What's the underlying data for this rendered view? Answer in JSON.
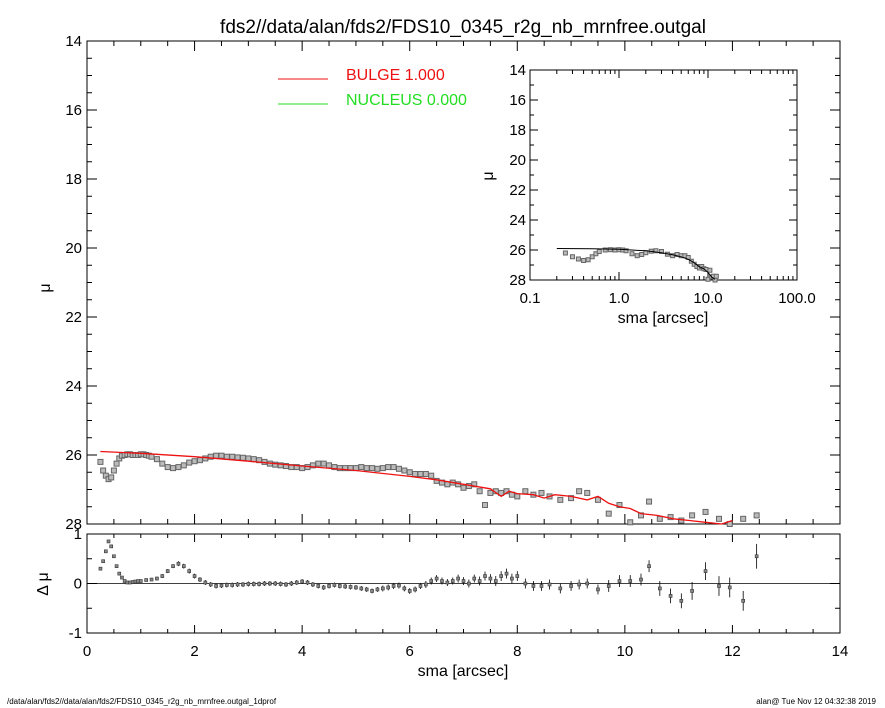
{
  "title": "fds2//data/alan/fds2/FDS10_0345_r2g_nb_mrnfree.outgal",
  "footer": {
    "left": "/data/alan/fds2//data/alan/fds2/FDS10_0345_r2g_nb_mrnfree.outgal_1dprof",
    "right": "alan@  Tue Nov 12 04:32:38 2019"
  },
  "colors": {
    "bulge": "#ee1111",
    "nucleus": "#22dd22",
    "data": "#666666",
    "axes": "#000000"
  },
  "chart_data": [
    {
      "id": "main",
      "type": "scatter",
      "title": "fds2//data/alan/fds2/FDS10_0345_r2g_nb_mrnfree.outgal",
      "xlabel": "",
      "ylabel": "μ",
      "xlim": [
        0,
        14
      ],
      "ylim": [
        14,
        28
      ],
      "y_inverted": true,
      "xticks": [
        0,
        2,
        4,
        6,
        8,
        10,
        12,
        14
      ],
      "yticks": [
        14,
        16,
        18,
        20,
        22,
        24,
        26,
        28
      ],
      "ytick_labels": [
        "14",
        "16",
        "18",
        "20",
        "22",
        "24",
        "26",
        "28"
      ],
      "legend": {
        "placement": "top-center",
        "entries": [
          {
            "label": "BULGE  1.000",
            "color": "#ee1111"
          },
          {
            "label": "NUCLEUS  0.000",
            "color": "#22dd22"
          }
        ]
      },
      "series": [
        {
          "name": "BULGE",
          "kind": "line",
          "color": "#ee1111",
          "x": [
            0.25,
            1.0,
            2.0,
            3.0,
            4.0,
            5.0,
            6.0,
            6.5,
            7.0,
            7.5,
            7.7,
            7.85,
            8.0,
            8.3,
            8.5,
            8.7,
            9.0,
            9.3,
            9.5,
            9.7,
            9.9,
            10.1,
            10.3,
            10.6,
            10.9,
            11.2,
            11.5,
            11.8,
            12.0
          ],
          "y": [
            25.9,
            25.95,
            26.05,
            26.18,
            26.32,
            26.45,
            26.62,
            26.72,
            26.85,
            26.98,
            27.2,
            27.05,
            27.12,
            27.15,
            27.25,
            27.15,
            27.2,
            27.3,
            27.2,
            27.4,
            27.5,
            27.55,
            27.7,
            27.75,
            27.85,
            27.9,
            27.95,
            28.0,
            27.9
          ]
        },
        {
          "name": "data",
          "kind": "markers",
          "color": "#666666",
          "x": [
            0.25,
            0.3,
            0.35,
            0.4,
            0.45,
            0.5,
            0.55,
            0.6,
            0.65,
            0.7,
            0.75,
            0.8,
            0.85,
            0.9,
            0.95,
            1.0,
            1.05,
            1.1,
            1.15,
            1.2,
            1.3,
            1.4,
            1.5,
            1.6,
            1.7,
            1.8,
            1.9,
            2.0,
            2.1,
            2.2,
            2.3,
            2.4,
            2.5,
            2.6,
            2.7,
            2.8,
            2.9,
            3.0,
            3.1,
            3.2,
            3.3,
            3.4,
            3.5,
            3.6,
            3.7,
            3.8,
            3.9,
            4.0,
            4.1,
            4.2,
            4.3,
            4.4,
            4.5,
            4.6,
            4.7,
            4.8,
            4.9,
            5.0,
            5.1,
            5.2,
            5.3,
            5.4,
            5.5,
            5.6,
            5.7,
            5.8,
            5.9,
            6.0,
            6.1,
            6.2,
            6.3,
            6.4,
            6.5,
            6.6,
            6.7,
            6.8,
            6.9,
            7.0,
            7.1,
            7.2,
            7.3,
            7.4,
            7.5,
            7.6,
            7.7,
            7.8,
            7.9,
            8.0,
            8.15,
            8.3,
            8.45,
            8.6,
            8.8,
            9.0,
            9.15,
            9.3,
            9.5,
            9.7,
            9.9,
            10.1,
            10.3,
            10.45,
            10.65,
            10.85,
            11.05,
            11.25,
            11.5,
            11.75,
            11.95,
            12.2,
            12.45
          ],
          "y": [
            26.2,
            26.45,
            26.6,
            26.7,
            26.65,
            26.45,
            26.25,
            26.1,
            26.02,
            26.0,
            25.98,
            25.98,
            26.0,
            26.0,
            26.0,
            25.98,
            25.98,
            26.0,
            26.02,
            26.05,
            26.12,
            26.25,
            26.35,
            26.38,
            26.35,
            26.3,
            26.22,
            26.18,
            26.15,
            26.1,
            26.05,
            26.02,
            26.02,
            26.05,
            26.05,
            26.07,
            26.08,
            26.1,
            26.12,
            26.15,
            26.2,
            26.25,
            26.28,
            26.3,
            26.32,
            26.35,
            26.35,
            26.38,
            26.35,
            26.3,
            26.25,
            26.25,
            26.3,
            26.35,
            26.38,
            26.38,
            26.38,
            26.38,
            26.35,
            26.38,
            26.38,
            26.4,
            26.38,
            26.35,
            26.35,
            26.4,
            26.45,
            26.5,
            26.55,
            26.55,
            26.55,
            26.6,
            26.75,
            26.8,
            26.85,
            26.8,
            26.85,
            26.95,
            26.9,
            26.85,
            27.05,
            27.45,
            27.1,
            27.05,
            27.1,
            27.05,
            27.15,
            27.2,
            27.05,
            27.15,
            27.1,
            27.2,
            27.3,
            27.25,
            27.05,
            27.1,
            27.3,
            27.7,
            27.45,
            27.95,
            27.75,
            27.35,
            27.85,
            27.8,
            27.9,
            27.75,
            27.65,
            27.85,
            28.0,
            27.85,
            27.75
          ]
        }
      ]
    },
    {
      "id": "residual",
      "type": "scatter",
      "xlabel": "sma [arcsec]",
      "ylabel": "Δ μ",
      "xlim": [
        0,
        14
      ],
      "ylim": [
        -1,
        1
      ],
      "xticks": [
        0,
        2,
        4,
        6,
        8,
        10,
        12,
        14
      ],
      "yticks": [
        -1,
        0,
        1
      ],
      "zero_line": true,
      "series": [
        {
          "name": "residuals",
          "kind": "markers-errorbars",
          "color": "#000000",
          "x": [
            0.25,
            0.3,
            0.35,
            0.4,
            0.45,
            0.5,
            0.55,
            0.6,
            0.65,
            0.7,
            0.75,
            0.8,
            0.85,
            0.9,
            0.95,
            1.0,
            1.1,
            1.2,
            1.3,
            1.4,
            1.5,
            1.6,
            1.7,
            1.8,
            1.9,
            2.0,
            2.1,
            2.2,
            2.3,
            2.4,
            2.5,
            2.6,
            2.7,
            2.8,
            2.9,
            3.0,
            3.1,
            3.2,
            3.3,
            3.4,
            3.5,
            3.6,
            3.7,
            3.8,
            3.9,
            4.0,
            4.1,
            4.2,
            4.3,
            4.4,
            4.5,
            4.6,
            4.7,
            4.8,
            4.9,
            5.0,
            5.1,
            5.2,
            5.3,
            5.4,
            5.5,
            5.6,
            5.7,
            5.8,
            5.9,
            6.0,
            6.1,
            6.2,
            6.3,
            6.4,
            6.5,
            6.6,
            6.7,
            6.8,
            6.9,
            7.0,
            7.1,
            7.2,
            7.3,
            7.4,
            7.5,
            7.6,
            7.7,
            7.8,
            7.9,
            8.0,
            8.15,
            8.3,
            8.45,
            8.6,
            8.8,
            9.0,
            9.15,
            9.3,
            9.5,
            9.7,
            9.9,
            10.1,
            10.3,
            10.45,
            10.65,
            10.85,
            11.05,
            11.25,
            11.5,
            11.75,
            11.95,
            12.2,
            12.45
          ],
          "y": [
            0.3,
            0.45,
            0.65,
            0.85,
            0.75,
            0.55,
            0.35,
            0.2,
            0.12,
            0.05,
            0.02,
            0.02,
            0.03,
            0.04,
            0.05,
            0.05,
            0.07,
            0.08,
            0.1,
            0.15,
            0.25,
            0.35,
            0.4,
            0.35,
            0.25,
            0.15,
            0.08,
            0.02,
            -0.02,
            -0.05,
            -0.04,
            -0.03,
            -0.03,
            -0.02,
            -0.02,
            -0.01,
            -0.01,
            -0.01,
            0.0,
            0.0,
            0.0,
            -0.01,
            -0.02,
            0.0,
            0.02,
            0.04,
            0.02,
            -0.02,
            -0.05,
            -0.08,
            -0.05,
            -0.03,
            -0.05,
            -0.06,
            -0.07,
            -0.08,
            -0.1,
            -0.12,
            -0.15,
            -0.12,
            -0.1,
            -0.08,
            -0.05,
            -0.04,
            -0.1,
            -0.15,
            -0.12,
            -0.05,
            -0.02,
            0.05,
            0.1,
            0.05,
            0.02,
            0.05,
            0.1,
            0.05,
            0.0,
            0.1,
            0.05,
            0.15,
            0.1,
            0.05,
            0.15,
            0.2,
            0.1,
            0.15,
            0.0,
            -0.05,
            -0.05,
            -0.02,
            -0.1,
            -0.05,
            -0.02,
            0.0,
            -0.12,
            -0.05,
            0.05,
            0.05,
            0.08,
            0.35,
            -0.1,
            -0.25,
            -0.35,
            -0.15,
            0.25,
            -0.05,
            -0.08,
            -0.35,
            0.55
          ],
          "err": [
            0.03,
            0.03,
            0.03,
            0.03,
            0.03,
            0.03,
            0.03,
            0.03,
            0.03,
            0.03,
            0.03,
            0.03,
            0.03,
            0.03,
            0.03,
            0.03,
            0.03,
            0.03,
            0.04,
            0.04,
            0.04,
            0.04,
            0.05,
            0.05,
            0.05,
            0.05,
            0.05,
            0.05,
            0.05,
            0.05,
            0.05,
            0.05,
            0.05,
            0.05,
            0.05,
            0.05,
            0.05,
            0.05,
            0.05,
            0.05,
            0.05,
            0.05,
            0.05,
            0.05,
            0.05,
            0.05,
            0.05,
            0.05,
            0.05,
            0.05,
            0.05,
            0.05,
            0.05,
            0.05,
            0.05,
            0.05,
            0.05,
            0.05,
            0.05,
            0.05,
            0.06,
            0.06,
            0.06,
            0.06,
            0.06,
            0.06,
            0.06,
            0.06,
            0.07,
            0.07,
            0.07,
            0.07,
            0.07,
            0.07,
            0.08,
            0.08,
            0.08,
            0.08,
            0.09,
            0.09,
            0.09,
            0.1,
            0.1,
            0.1,
            0.1,
            0.1,
            0.1,
            0.1,
            0.1,
            0.1,
            0.1,
            0.1,
            0.1,
            0.1,
            0.1,
            0.12,
            0.12,
            0.12,
            0.12,
            0.12,
            0.15,
            0.15,
            0.15,
            0.18,
            0.18,
            0.2,
            0.2,
            0.2,
            0.25
          ]
        }
      ]
    },
    {
      "id": "inset",
      "type": "scatter",
      "xlabel": "sma [arcsec]",
      "ylabel": "μ",
      "x_scale": "log",
      "xlim": [
        0.1,
        100.0
      ],
      "ylim": [
        14,
        28
      ],
      "y_inverted": true,
      "xticks": [
        0.1,
        1.0,
        10.0,
        100.0
      ],
      "xtick_labels": [
        "0.1",
        "1.0",
        "10.0",
        "100.0"
      ],
      "yticks": [
        14,
        16,
        18,
        20,
        22,
        24,
        26,
        28
      ],
      "ytick_labels": [
        "14",
        "16",
        "18",
        "20",
        "22",
        "24",
        "26",
        "28"
      ],
      "series": [
        {
          "name": "model",
          "kind": "line",
          "color": "#000000",
          "x": [
            0.2,
            0.5,
            1.0,
            2.0,
            3.0,
            4.0,
            5.0,
            6.0,
            7.0,
            8.0,
            9.0,
            10.0,
            11.0,
            12.0
          ],
          "y": [
            25.9,
            25.92,
            25.95,
            26.05,
            26.18,
            26.32,
            26.45,
            26.62,
            26.85,
            27.12,
            27.25,
            27.5,
            27.8,
            27.95
          ]
        },
        {
          "name": "data",
          "kind": "markers",
          "color": "#666666",
          "x": [
            0.25,
            0.3,
            0.35,
            0.4,
            0.45,
            0.5,
            0.55,
            0.6,
            0.7,
            0.8,
            0.9,
            1.0,
            1.1,
            1.2,
            1.4,
            1.6,
            1.8,
            2.0,
            2.3,
            2.6,
            3.0,
            3.5,
            4.0,
            4.5,
            5.0,
            5.5,
            6.0,
            6.5,
            7.0,
            7.5,
            8.0,
            8.5,
            9.0,
            9.5,
            10.0,
            10.5,
            11.0,
            11.5,
            12.0,
            12.4
          ],
          "y": [
            26.2,
            26.45,
            26.6,
            26.7,
            26.65,
            26.45,
            26.25,
            26.1,
            26.0,
            25.98,
            26.0,
            25.98,
            26.0,
            26.05,
            26.25,
            26.38,
            26.3,
            26.18,
            26.08,
            26.05,
            26.1,
            26.28,
            26.38,
            26.3,
            26.38,
            26.38,
            26.5,
            26.75,
            26.95,
            27.1,
            27.2,
            27.1,
            27.25,
            27.3,
            27.95,
            27.35,
            27.8,
            27.75,
            28.0,
            27.75
          ]
        }
      ]
    }
  ]
}
